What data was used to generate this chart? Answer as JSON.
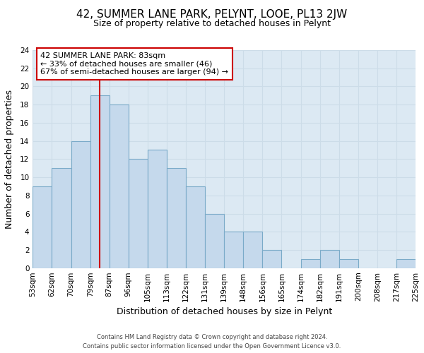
{
  "title": "42, SUMMER LANE PARK, PELYNT, LOOE, PL13 2JW",
  "subtitle": "Size of property relative to detached houses in Pelynt",
  "xlabel": "Distribution of detached houses by size in Pelynt",
  "ylabel": "Number of detached properties",
  "footer_line1": "Contains HM Land Registry data © Crown copyright and database right 2024.",
  "footer_line2": "Contains public sector information licensed under the Open Government Licence v3.0.",
  "bin_labels": [
    "53sqm",
    "62sqm",
    "70sqm",
    "79sqm",
    "87sqm",
    "96sqm",
    "105sqm",
    "113sqm",
    "122sqm",
    "131sqm",
    "139sqm",
    "148sqm",
    "156sqm",
    "165sqm",
    "174sqm",
    "182sqm",
    "191sqm",
    "200sqm",
    "208sqm",
    "217sqm",
    "225sqm"
  ],
  "counts": [
    9,
    11,
    14,
    19,
    18,
    12,
    13,
    11,
    9,
    6,
    4,
    4,
    2,
    0,
    1,
    2,
    1,
    0,
    0,
    1
  ],
  "bar_color": "#c5d9ec",
  "bar_edge_color": "#7aaac8",
  "vline_pos": 4,
  "vline_color": "#cc0000",
  "annotation_title": "42 SUMMER LANE PARK: 83sqm",
  "annotation_line1": "← 33% of detached houses are smaller (46)",
  "annotation_line2": "67% of semi-detached houses are larger (94) →",
  "annotation_box_edge": "#cc0000",
  "ylim": [
    0,
    24
  ],
  "yticks": [
    0,
    2,
    4,
    6,
    8,
    10,
    12,
    14,
    16,
    18,
    20,
    22,
    24
  ],
  "grid_color": "#ccdce8",
  "bg_color": "#dce9f3",
  "title_fontsize": 11,
  "subtitle_fontsize": 9,
  "axis_label_fontsize": 9,
  "tick_fontsize": 7.5,
  "annotation_fontsize": 8
}
